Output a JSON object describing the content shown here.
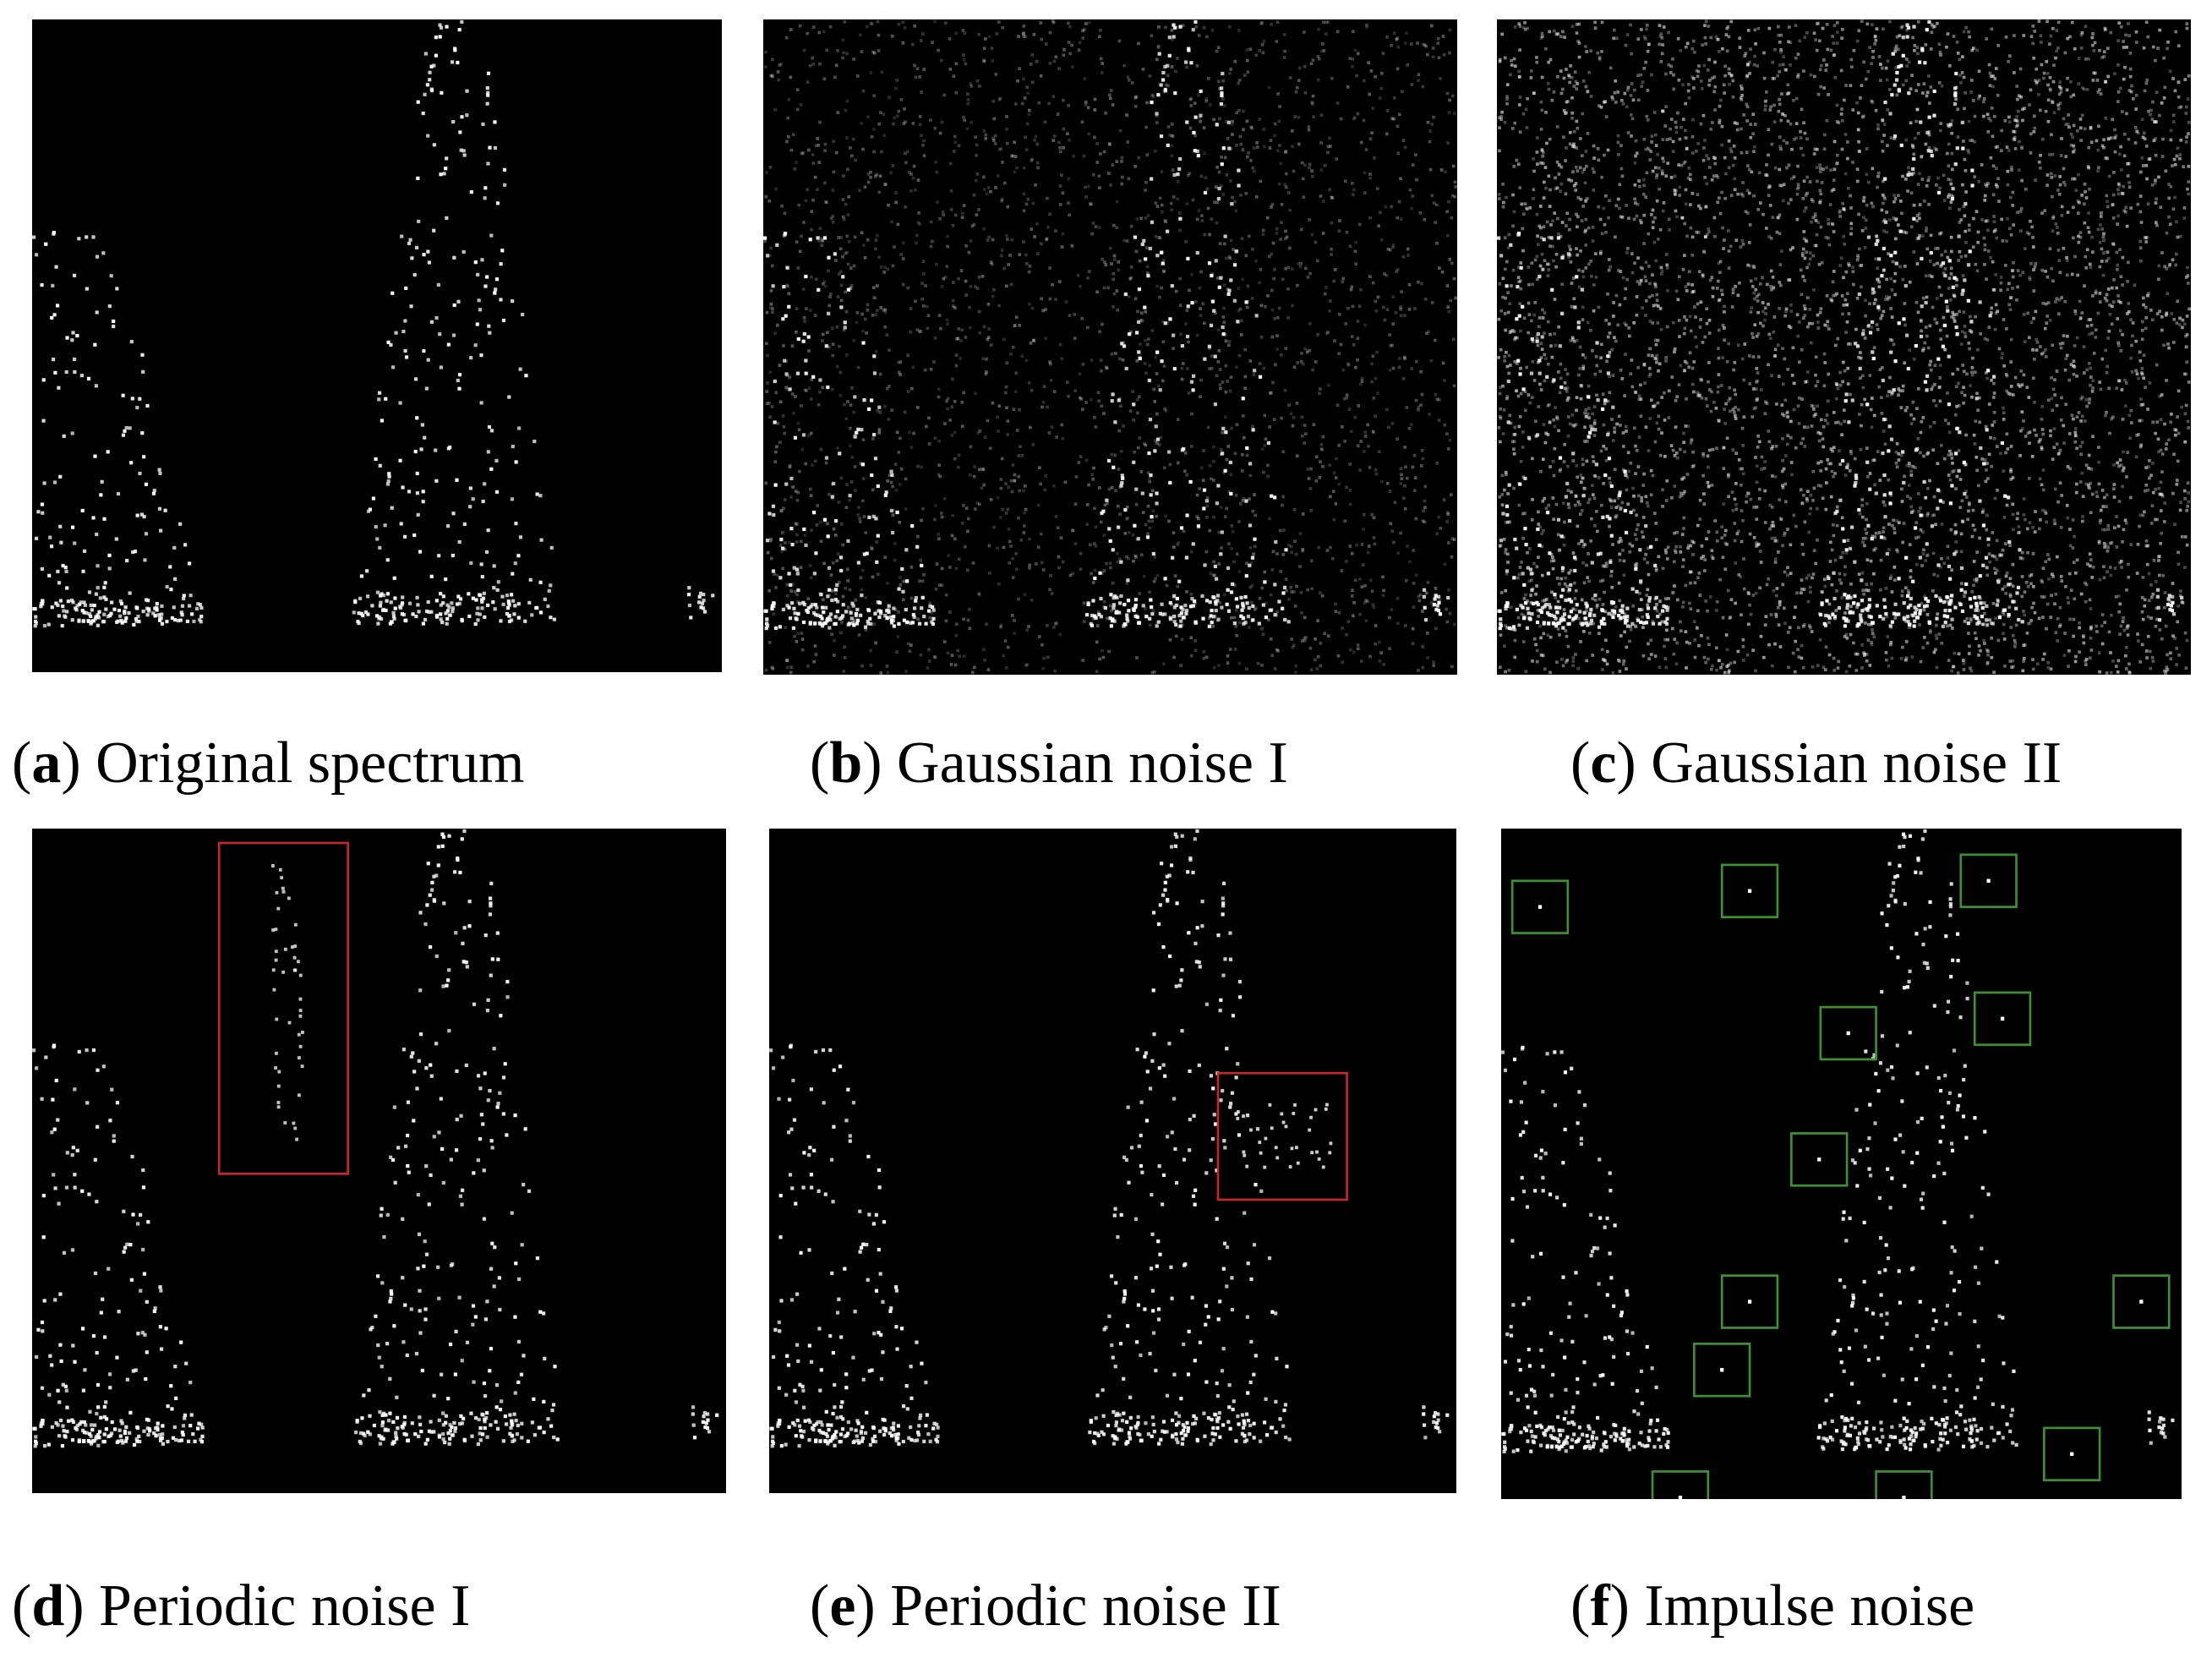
{
  "panels": [
    {
      "open": "(",
      "letter": "a",
      "rest": ") Original spectrum"
    },
    {
      "open": "(",
      "letter": "b",
      "rest": ") Gaussian noise I"
    },
    {
      "open": "(",
      "letter": "c",
      "rest": ") Gaussian noise II"
    },
    {
      "open": "(",
      "letter": "d",
      "rest": ") Periodic noise I"
    },
    {
      "open": "(",
      "letter": "e",
      "rest": ") Periodic noise II"
    },
    {
      "open": "(",
      "letter": "f",
      "rest": ") Impulse noise"
    }
  ]
}
